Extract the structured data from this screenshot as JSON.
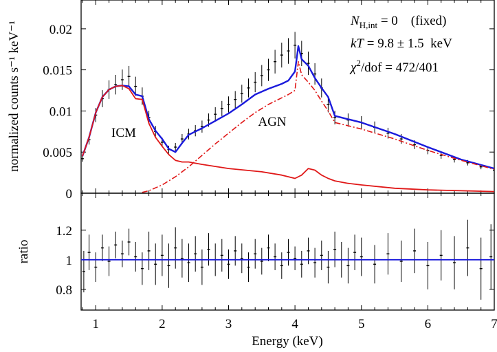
{
  "chart_data": [
    {
      "panel": "spectrum",
      "type": "line",
      "xlabel": "",
      "ylabel": "normalized counts s⁻¹ keV⁻¹",
      "xlim": [
        0.78,
        7.0
      ],
      "ylim": [
        0.0,
        0.0235
      ],
      "xticks": [
        1,
        2,
        3,
        4,
        5,
        6,
        7
      ],
      "xtick_labels": [],
      "yticks": [
        0,
        0.005,
        0.01,
        0.015,
        0.02
      ],
      "ytick_labels": [
        "0",
        "0.005",
        "0.01",
        "0.015",
        "0.02"
      ],
      "annotations": [
        "ICM",
        "AGN"
      ],
      "stats": {
        "line1": {
          "var": "N",
          "sub": "H,int",
          "rest": " = 0    (fixed)"
        },
        "line2": {
          "var": "kT",
          "rest": " = 9.8 ± 1.5  keV"
        },
        "line3": {
          "var": "χ",
          "sup": "2",
          "rest": "/dof = 472/401"
        }
      },
      "colors": {
        "data": "#000000",
        "total_model": "#1a1adc",
        "components": "#e01818"
      },
      "series": [
        {
          "role": "data",
          "x": [
            0.8,
            0.9,
            1.0,
            1.1,
            1.2,
            1.3,
            1.4,
            1.5,
            1.6,
            1.7,
            1.8,
            1.9,
            2.0,
            2.1,
            2.2,
            2.3,
            2.4,
            2.5,
            2.6,
            2.7,
            2.8,
            2.9,
            3.0,
            3.1,
            3.2,
            3.3,
            3.4,
            3.5,
            3.6,
            3.7,
            3.8,
            3.9,
            4.0,
            4.1,
            4.2,
            4.3,
            4.4,
            4.5,
            4.6,
            4.8,
            5.0,
            5.2,
            5.4,
            5.6,
            5.8,
            6.0,
            6.2,
            6.4,
            6.6,
            6.8,
            7.0
          ],
          "y": [
            0.0042,
            0.0065,
            0.0095,
            0.0115,
            0.0126,
            0.0132,
            0.0138,
            0.0142,
            0.013,
            0.0118,
            0.0092,
            0.0075,
            0.0062,
            0.0053,
            0.0056,
            0.0066,
            0.0072,
            0.0076,
            0.0081,
            0.0089,
            0.0096,
            0.0103,
            0.0108,
            0.0114,
            0.0121,
            0.0128,
            0.0135,
            0.0143,
            0.015,
            0.016,
            0.0168,
            0.0173,
            0.018,
            0.017,
            0.0158,
            0.0145,
            0.0128,
            0.0108,
            0.0092,
            0.0089,
            0.0086,
            0.008,
            0.0073,
            0.0066,
            0.0059,
            0.0052,
            0.0046,
            0.0041,
            0.0037,
            0.0032,
            0.0028
          ]
        },
        {
          "role": "total_model",
          "x": [
            0.8,
            0.9,
            1.0,
            1.1,
            1.2,
            1.3,
            1.4,
            1.5,
            1.6,
            1.7,
            1.8,
            1.9,
            2.0,
            2.1,
            2.2,
            2.3,
            2.4,
            2.5,
            2.6,
            2.8,
            3.0,
            3.2,
            3.4,
            3.6,
            3.8,
            3.9,
            4.0,
            4.05,
            4.1,
            4.2,
            4.3,
            4.4,
            4.5,
            4.6,
            4.8,
            5.0,
            5.5,
            6.0,
            6.5,
            7.0
          ],
          "y": [
            0.0045,
            0.0068,
            0.0098,
            0.0117,
            0.0126,
            0.013,
            0.0131,
            0.013,
            0.012,
            0.0118,
            0.009,
            0.0076,
            0.0066,
            0.0054,
            0.005,
            0.0061,
            0.0071,
            0.0075,
            0.0079,
            0.0088,
            0.0097,
            0.0108,
            0.012,
            0.0127,
            0.0133,
            0.0137,
            0.0148,
            0.0179,
            0.0163,
            0.0155,
            0.014,
            0.0128,
            0.0117,
            0.0094,
            0.009,
            0.0086,
            0.0072,
            0.0056,
            0.0041,
            0.003
          ]
        },
        {
          "role": "icm_component",
          "x": [
            0.8,
            0.9,
            1.0,
            1.1,
            1.2,
            1.3,
            1.4,
            1.5,
            1.6,
            1.7,
            1.8,
            1.9,
            2.0,
            2.1,
            2.2,
            2.3,
            2.4,
            2.6,
            3.0,
            3.5,
            3.8,
            4.0,
            4.1,
            4.2,
            4.3,
            4.4,
            4.5,
            4.6,
            4.8,
            5.0,
            5.5,
            6.0,
            7.0
          ],
          "y": [
            0.0045,
            0.0068,
            0.0098,
            0.0117,
            0.0126,
            0.013,
            0.0131,
            0.0127,
            0.0115,
            0.0114,
            0.0085,
            0.0068,
            0.0057,
            0.0047,
            0.004,
            0.0038,
            0.0038,
            0.0035,
            0.003,
            0.0026,
            0.0022,
            0.0018,
            0.0022,
            0.003,
            0.0028,
            0.0022,
            0.0018,
            0.0015,
            0.0012,
            0.001,
            0.0006,
            0.0004,
            0.0002
          ]
        },
        {
          "role": "agn_component",
          "x": [
            1.7,
            1.8,
            2.0,
            2.2,
            2.4,
            2.6,
            2.8,
            3.0,
            3.2,
            3.4,
            3.6,
            3.8,
            3.9,
            4.0,
            4.05,
            4.1,
            4.2,
            4.3,
            4.4,
            4.5,
            4.6,
            4.8,
            5.0,
            5.5,
            6.0,
            6.5,
            7.0
          ],
          "y": [
            0.0001,
            0.0003,
            0.001,
            0.002,
            0.0032,
            0.0046,
            0.006,
            0.0073,
            0.0086,
            0.0098,
            0.0108,
            0.0116,
            0.012,
            0.0125,
            0.016,
            0.0144,
            0.0135,
            0.0125,
            0.0112,
            0.01,
            0.0086,
            0.0082,
            0.0078,
            0.0066,
            0.0052,
            0.004,
            0.0029
          ]
        }
      ]
    },
    {
      "panel": "ratio",
      "type": "scatter",
      "xlabel": "Energy (keV)",
      "ylabel": "ratio",
      "xlim": [
        0.78,
        7.0
      ],
      "ylim": [
        0.66,
        1.45
      ],
      "xticks": [
        1,
        2,
        3,
        4,
        5,
        6,
        7
      ],
      "xtick_labels": [
        "1",
        "2",
        "3",
        "4",
        "5",
        "6",
        "7"
      ],
      "yticks": [
        0.8,
        1.0,
        1.2
      ],
      "ytick_labels": [
        "0.8",
        "1",
        "1.2"
      ],
      "reference_line": 1.0,
      "colors": {
        "data": "#000000",
        "reference": "#1a1adc"
      },
      "series": [
        {
          "role": "ratio_data",
          "x": [
            0.82,
            0.9,
            1.0,
            1.1,
            1.2,
            1.3,
            1.4,
            1.5,
            1.6,
            1.7,
            1.8,
            1.9,
            2.0,
            2.1,
            2.2,
            2.3,
            2.4,
            2.5,
            2.6,
            2.7,
            2.8,
            2.9,
            3.0,
            3.1,
            3.2,
            3.3,
            3.4,
            3.5,
            3.6,
            3.7,
            3.8,
            3.9,
            4.0,
            4.1,
            4.2,
            4.3,
            4.4,
            4.5,
            4.6,
            4.7,
            4.8,
            4.9,
            5.0,
            5.2,
            5.4,
            5.6,
            5.8,
            6.0,
            6.2,
            6.4,
            6.6,
            6.8,
            6.95
          ],
          "y": [
            0.92,
            1.05,
            0.95,
            1.08,
            0.99,
            1.1,
            1.04,
            1.12,
            1.02,
            0.94,
            1.06,
            0.97,
            1.03,
            0.96,
            1.08,
            1.01,
            0.98,
            1.04,
            0.95,
            1.07,
            1.0,
            1.03,
            0.97,
            1.06,
            1.01,
            0.95,
            1.04,
            0.99,
            1.08,
            1.02,
            0.96,
            1.05,
            1.01,
            0.97,
            1.06,
            0.98,
            1.03,
            0.95,
            1.07,
            1.0,
            0.96,
            1.05,
            1.02,
            0.97,
            1.04,
            0.99,
            1.06,
            0.96,
            1.03,
            0.98,
            1.08,
            0.94,
            1.02
          ],
          "err": [
            0.14,
            0.12,
            0.1,
            0.09,
            0.1,
            0.09,
            0.09,
            0.09,
            0.1,
            0.11,
            0.13,
            0.14,
            0.14,
            0.15,
            0.14,
            0.13,
            0.13,
            0.12,
            0.12,
            0.11,
            0.11,
            0.11,
            0.1,
            0.1,
            0.1,
            0.1,
            0.1,
            0.09,
            0.09,
            0.09,
            0.09,
            0.09,
            0.08,
            0.09,
            0.09,
            0.1,
            0.1,
            0.11,
            0.12,
            0.12,
            0.12,
            0.12,
            0.13,
            0.13,
            0.14,
            0.14,
            0.15,
            0.16,
            0.17,
            0.18,
            0.19,
            0.21,
            0.22
          ]
        }
      ]
    }
  ]
}
